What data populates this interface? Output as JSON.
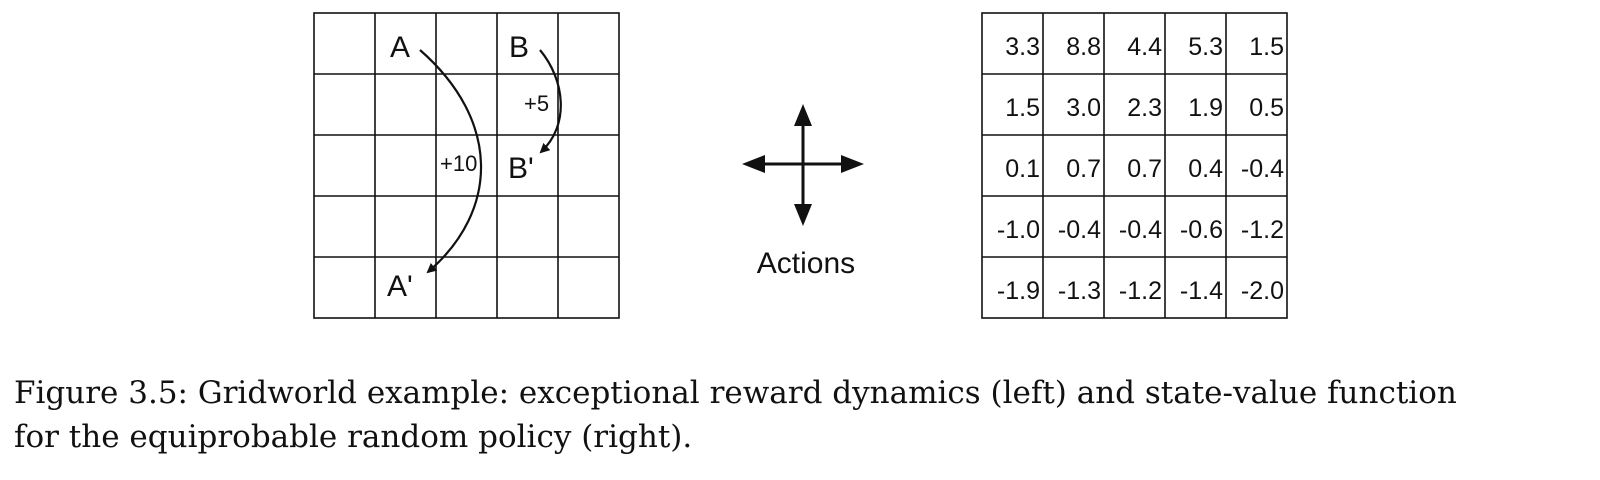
{
  "left_grid": {
    "rows": 5,
    "cols": 5,
    "labels": [
      {
        "text": "A",
        "row": 0,
        "col": 1
      },
      {
        "text": "B",
        "row": 0,
        "col": 3
      },
      {
        "text": "B'",
        "row": 2,
        "col": 3
      },
      {
        "text": "A'",
        "row": 4,
        "col": 1
      }
    ],
    "rewards": {
      "b_to_b_prime": "+5",
      "a_to_a_prime": "+10"
    }
  },
  "actions_label": "Actions",
  "value_grid": {
    "rows": [
      [
        "3.3",
        "8.8",
        "4.4",
        "5.3",
        "1.5"
      ],
      [
        "1.5",
        "3.0",
        "2.3",
        "1.9",
        "0.5"
      ],
      [
        "0.1",
        "0.7",
        "0.7",
        "0.4",
        "-0.4"
      ],
      [
        "-1.0",
        "-0.4",
        "-0.4",
        "-0.6",
        "-1.2"
      ],
      [
        "-1.9",
        "-1.3",
        "-1.2",
        "-1.4",
        "-2.0"
      ]
    ]
  },
  "caption": {
    "line1": "Figure 3.5:  Gridworld example: exceptional reward dynamics (left) and state-value function",
    "line2": "for the equiprobable random policy (right)."
  }
}
